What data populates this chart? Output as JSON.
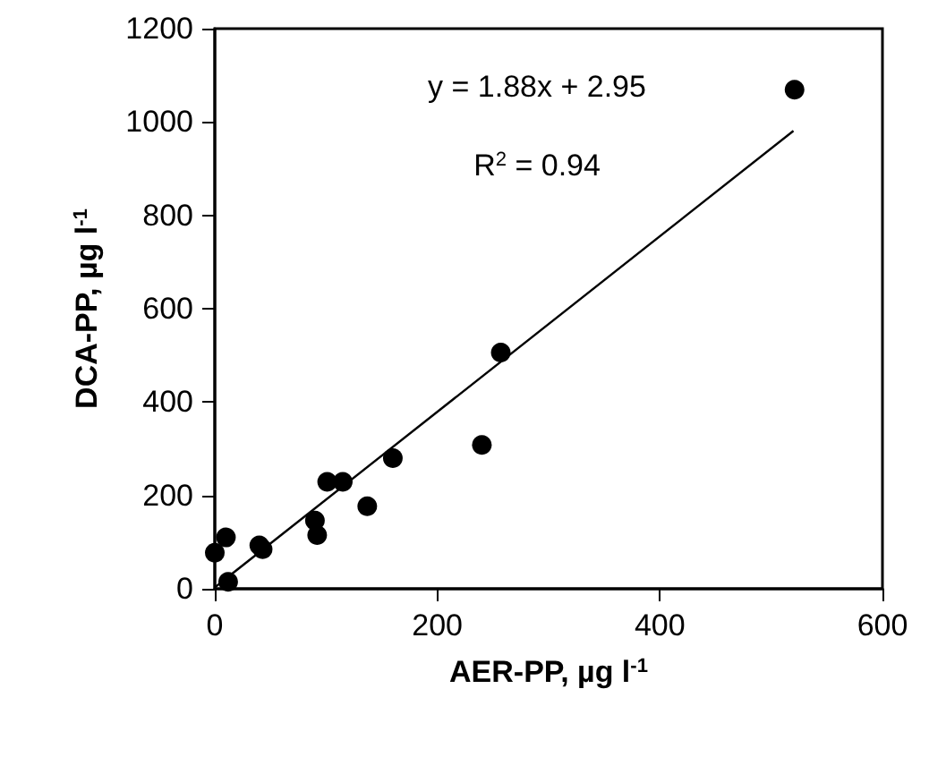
{
  "chart_data": {
    "type": "scatter",
    "xlabel": "AER-PP, µg l$^{-1}$",
    "ylabel": "DCA-PP, µg l$^{-1}$",
    "annotations": [
      "y = 1.88x + 2.95",
      "R$^{2}$ = 0.94"
    ],
    "xlim": [
      0,
      600
    ],
    "xticks": [
      0,
      200,
      400,
      600
    ],
    "ylim": [
      0,
      1200
    ],
    "yticks": [
      0,
      200,
      400,
      600,
      800,
      1000,
      1200
    ],
    "grid": false,
    "marker": "circle",
    "series": [
      {
        "type": "scatter",
        "color": "#000000",
        "x": [
          0,
          10,
          12,
          40,
          43,
          90,
          92,
          101,
          115,
          137,
          160,
          240,
          257,
          521
        ],
        "values": [
          77,
          110,
          15,
          93,
          85,
          146,
          115,
          229,
          229,
          177,
          280,
          308,
          506,
          1069
        ]
      },
      {
        "type": "line",
        "color": "#000000",
        "marker": "none",
        "line_style": "solid",
        "x": [
          0,
          520
        ],
        "values": [
          3,
          981
        ]
      }
    ]
  }
}
